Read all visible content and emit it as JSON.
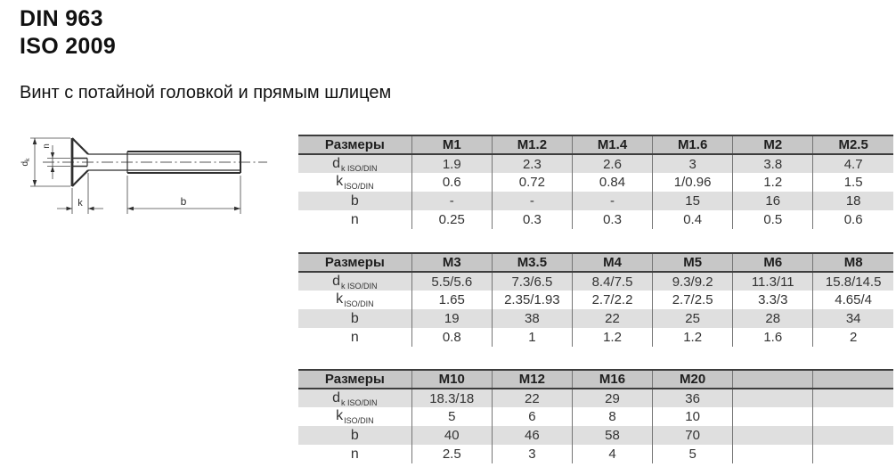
{
  "page": {
    "standard_din": "DIN 963",
    "standard_iso": "ISO 2009",
    "subtitle": "Винт с потайной головкой и прямым шлицем"
  },
  "drawing": {
    "description": "countersunk-slotted-screw-side-view",
    "dim_dk_main": "d",
    "dim_dk_sub": "k",
    "dim_n": "n",
    "dim_k": "k",
    "dim_b": "b"
  },
  "colors": {
    "table_header_bg": "#c7c7c7",
    "table_alt_row_bg": "#dfdfdf",
    "table_border_dark": "#3d3d3d",
    "table_border_thin": "#757575",
    "text": "#333333"
  },
  "tables": [
    {
      "header": [
        "Размеры",
        "M1",
        "M1.2",
        "M1.4",
        "M1.6",
        "M2",
        "M2.5"
      ],
      "rows": [
        {
          "label_main": "d",
          "label_sub": "k ISO/DIN",
          "values": [
            "1.9",
            "2.3",
            "2.6",
            "3",
            "3.8",
            "4.7"
          ]
        },
        {
          "label_main": "k",
          "label_sub": "ISO/DIN",
          "values": [
            "0.6",
            "0.72",
            "0.84",
            "1/0.96",
            "1.2",
            "1.5"
          ]
        },
        {
          "label_main": "b",
          "label_sub": "",
          "values": [
            "-",
            "-",
            "-",
            "15",
            "16",
            "18"
          ]
        },
        {
          "label_main": "n",
          "label_sub": "",
          "values": [
            "0.25",
            "0.3",
            "0.3",
            "0.4",
            "0.5",
            "0.6"
          ]
        }
      ]
    },
    {
      "header": [
        "Размеры",
        "M3",
        "M3.5",
        "M4",
        "M5",
        "M6",
        "M8"
      ],
      "rows": [
        {
          "label_main": "d",
          "label_sub": "k ISO/DIN",
          "values": [
            "5.5/5.6",
            "7.3/6.5",
            "8.4/7.5",
            "9.3/9.2",
            "11.3/11",
            "15.8/14.5"
          ]
        },
        {
          "label_main": "k",
          "label_sub": "ISO/DIN",
          "values": [
            "1.65",
            "2.35/1.93",
            "2.7/2.2",
            "2.7/2.5",
            "3.3/3",
            "4.65/4"
          ]
        },
        {
          "label_main": "b",
          "label_sub": "",
          "values": [
            "19",
            "38",
            "22",
            "25",
            "28",
            "34"
          ]
        },
        {
          "label_main": "n",
          "label_sub": "",
          "values": [
            "0.8",
            "1",
            "1.2",
            "1.2",
            "1.6",
            "2"
          ]
        }
      ]
    },
    {
      "header": [
        "Размеры",
        "M10",
        "M12",
        "M16",
        "M20",
        "",
        ""
      ],
      "rows": [
        {
          "label_main": "d",
          "label_sub": "k ISO/DIN",
          "values": [
            "18.3/18",
            "22",
            "29",
            "36",
            "",
            ""
          ]
        },
        {
          "label_main": "k",
          "label_sub": "ISO/DIN",
          "values": [
            "5",
            "6",
            "8",
            "10",
            "",
            ""
          ]
        },
        {
          "label_main": "b",
          "label_sub": "",
          "values": [
            "40",
            "46",
            "58",
            "70",
            "",
            ""
          ]
        },
        {
          "label_main": "n",
          "label_sub": "",
          "values": [
            "2.5",
            "3",
            "4",
            "5",
            "",
            ""
          ]
        }
      ]
    }
  ]
}
